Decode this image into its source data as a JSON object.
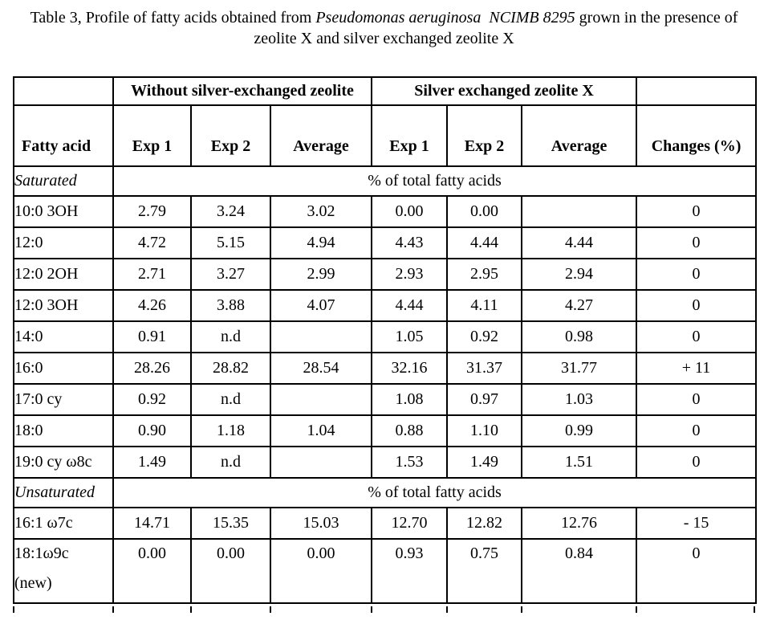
{
  "page": {
    "background": "#ffffff",
    "text_color": "#000000",
    "border_color": "#000000"
  },
  "title": {
    "line1_prefix": "Table 3, Profile of fatty acids obtained from ",
    "line1_italic": "Pseudomonas aeruginosa  NCIMB 8295",
    "line1_suffix": " grown in the presence of",
    "line2": "zeolite X and silver exchanged zeolite X"
  },
  "table": {
    "group_headers": {
      "without": "Without silver-exchanged zeolite",
      "with": "Silver exchanged zeolite X"
    },
    "column_headers": [
      "Fatty acid",
      "Exp 1",
      "Exp 2",
      "Average",
      "Exp 1",
      "Exp 2",
      "Average",
      "Changes (%)"
    ],
    "sections": [
      {
        "label": "Saturated",
        "span_label": "% of total fatty acids",
        "rows": [
          {
            "name": "10:0 3OH",
            "values": [
              "2.79",
              "3.24",
              "3.02",
              "0.00",
              "0.00",
              "",
              "0"
            ]
          },
          {
            "name": "12:0",
            "values": [
              "4.72",
              "5.15",
              "4.94",
              "4.43",
              "4.44",
              "4.44",
              "0"
            ]
          },
          {
            "name": "12:0 2OH",
            "values": [
              "2.71",
              "3.27",
              "2.99",
              "2.93",
              "2.95",
              "2.94",
              "0"
            ]
          },
          {
            "name": "12:0 3OH",
            "values": [
              "4.26",
              "3.88",
              "4.07",
              "4.44",
              "4.11",
              "4.27",
              "0"
            ]
          },
          {
            "name": "14:0",
            "values": [
              "0.91",
              "n.d",
              "",
              "1.05",
              "0.92",
              "0.98",
              "0"
            ]
          },
          {
            "name": "16:0",
            "values": [
              "28.26",
              "28.82",
              "28.54",
              "32.16",
              "31.37",
              "31.77",
              "+ 11"
            ]
          },
          {
            "name": "17:0 cy",
            "values": [
              "0.92",
              "n.d",
              "",
              "1.08",
              "0.97",
              "1.03",
              "0"
            ]
          },
          {
            "name": "18:0",
            "values": [
              "0.90",
              "1.18",
              "1.04",
              "0.88",
              "1.10",
              "0.99",
              "0"
            ]
          },
          {
            "name": "19:0 cy ω8c",
            "values": [
              "1.49",
              "n.d",
              "",
              "1.53",
              "1.49",
              "1.51",
              "0"
            ]
          }
        ]
      },
      {
        "label": "Unsaturated",
        "span_label": "% of total fatty acids",
        "rows": [
          {
            "name": "16:1 ω7c",
            "values": [
              "14.71",
              "15.35",
              "15.03",
              "12.70",
              "12.82",
              "12.76",
              "- 15"
            ]
          },
          {
            "name": "18:1ω9c",
            "name_line2": "(new)",
            "tall": true,
            "values": [
              "0.00",
              "0.00",
              "0.00",
              "0.93",
              "0.75",
              "0.84",
              "0"
            ]
          }
        ]
      }
    ]
  }
}
